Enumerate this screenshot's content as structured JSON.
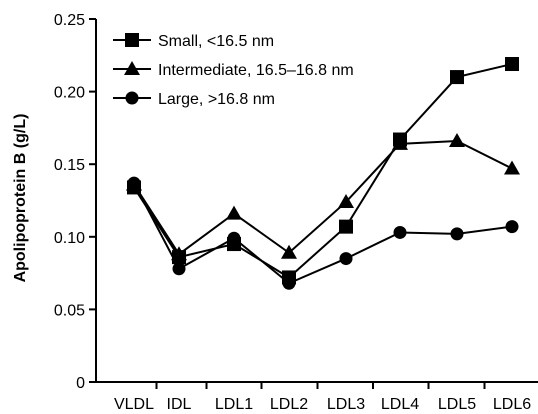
{
  "chart_data": {
    "type": "line",
    "categories": [
      "VLDL",
      "IDL",
      "LDL1",
      "LDL2",
      "LDL3",
      "LDL4",
      "LDL5",
      "LDL6"
    ],
    "ylabel": "Apolipoprotein B (g/L)",
    "xlabel": "",
    "ylim": [
      0,
      0.25
    ],
    "yticks": [
      0,
      0.05,
      0.1,
      0.15,
      0.2,
      0.25
    ],
    "ytick_labels": [
      "0",
      "0.05",
      "0.10",
      "0.15",
      "0.20",
      "0.25"
    ],
    "grid": false,
    "legend_position": "top-left",
    "series": [
      {
        "name": "Small, <16.5 nm",
        "marker": "square",
        "values": [
          0.134,
          0.086,
          0.095,
          0.072,
          0.107,
          0.167,
          0.21,
          0.219
        ]
      },
      {
        "name": "Intermediate, 16.5–16.8 nm",
        "marker": "triangle",
        "values": [
          0.136,
          0.088,
          0.116,
          0.089,
          0.124,
          0.164,
          0.166,
          0.147
        ]
      },
      {
        "name": "Large, >16.8 nm",
        "marker": "circle",
        "values": [
          0.137,
          0.078,
          0.099,
          0.068,
          0.085,
          0.103,
          0.102,
          0.107
        ]
      }
    ],
    "colors": {
      "line": "#000000",
      "marker": "#000000"
    }
  }
}
